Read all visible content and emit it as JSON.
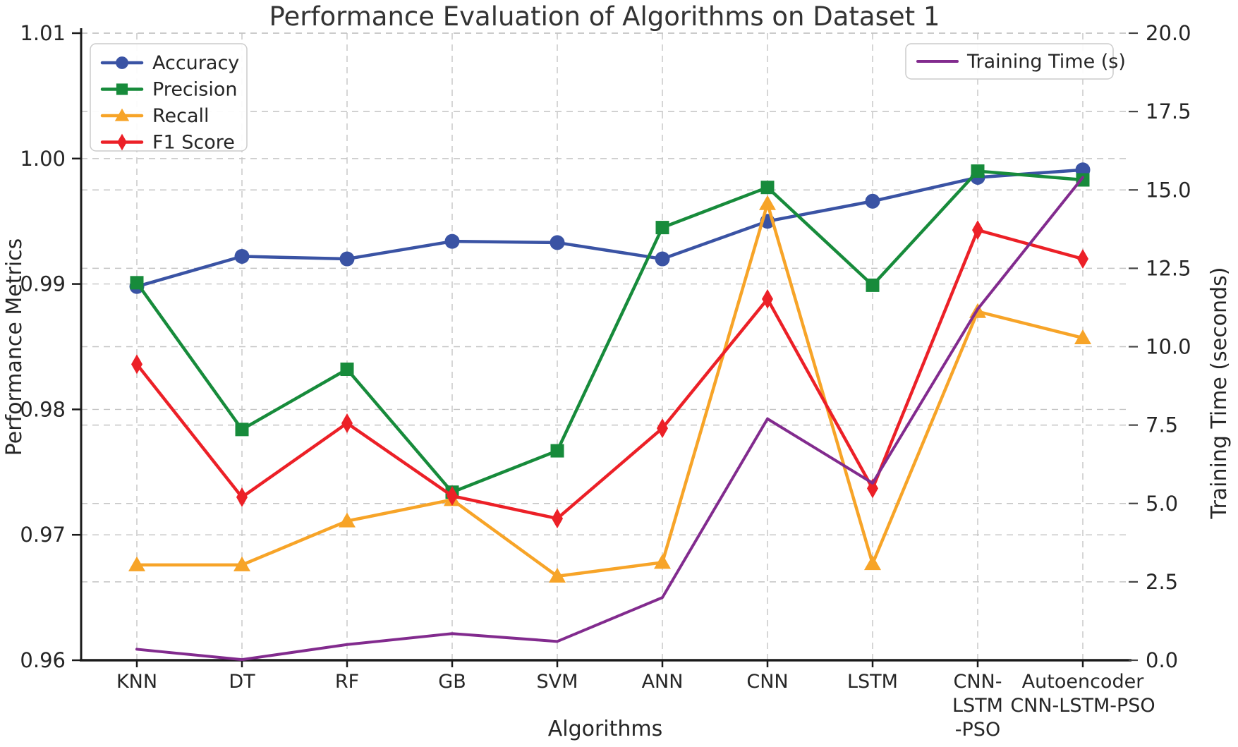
{
  "title": "Performance Evaluation of Algorithms on Dataset 1",
  "chart_data": {
    "type": "line",
    "title": "Performance Evaluation of Algorithms on Dataset 1",
    "xlabel": "Algorithms",
    "categories": [
      "KNN",
      "DT",
      "RF",
      "GB",
      "SVM",
      "ANN",
      "CNN",
      "LSTM",
      "CNN-LSTM-PSO",
      "Autoencoder CNN-LSTM-PSO"
    ],
    "x_tick_lines": [
      [
        "KNN"
      ],
      [
        "DT"
      ],
      [
        "RF"
      ],
      [
        "GB"
      ],
      [
        "SVM"
      ],
      [
        "ANN"
      ],
      [
        "CNN"
      ],
      [
        "LSTM"
      ],
      [
        "CNN-",
        "LSTM",
        "-PSO"
      ],
      [
        "Autoencoder",
        "CNN-LSTM-PSO"
      ]
    ],
    "left_axis": {
      "label": "Performance Metrics",
      "min": 0.96,
      "max": 1.01,
      "tick_values": [
        0.96,
        0.97,
        0.98,
        0.99,
        1.0,
        1.01
      ],
      "tick_labels": [
        "0.96",
        "0.97",
        "0.98",
        "0.99",
        "1.00",
        "1.01"
      ]
    },
    "right_axis": {
      "label": "Training Time (seconds)",
      "min": 0,
      "max": 20,
      "tick_values": [
        0,
        2.5,
        5,
        7.5,
        10,
        12.5,
        15,
        17.5,
        20
      ],
      "tick_labels": [
        "0.0",
        "2.5",
        "5.0",
        "7.5",
        "10.0",
        "12.5",
        "15.0",
        "17.5",
        "20.0"
      ]
    },
    "grid": true,
    "legend_left_entries": [
      "Accuracy",
      "Precision",
      "Recall",
      "F1 Score"
    ],
    "legend_right_entries": [
      "Training Time (s)"
    ],
    "series": [
      {
        "name": "Accuracy",
        "axis": "left",
        "color": "#3A53A4",
        "marker": "circle",
        "values": [
          0.9898,
          0.9922,
          0.992,
          0.9934,
          0.9933,
          0.992,
          0.995,
          0.9966,
          0.9985,
          0.9991
        ]
      },
      {
        "name": "Precision",
        "axis": "left",
        "color": "#178B3B",
        "marker": "square",
        "values": [
          0.9901,
          0.9784,
          0.9832,
          0.9734,
          0.9767,
          0.9945,
          0.9977,
          0.9899,
          0.999,
          0.9983
        ]
      },
      {
        "name": "Recall",
        "axis": "left",
        "color": "#F7A428",
        "marker": "triangle",
        "values": [
          0.9676,
          0.9676,
          0.9711,
          0.9728,
          0.9667,
          0.9678,
          0.9964,
          0.9677,
          0.9878,
          0.9857
        ]
      },
      {
        "name": "F1 Score",
        "axis": "left",
        "color": "#EC2027",
        "marker": "diamond",
        "values": [
          0.9836,
          0.973,
          0.9789,
          0.9731,
          0.9713,
          0.9785,
          0.9888,
          0.9737,
          0.9943,
          0.992
        ]
      },
      {
        "name": "Training Time (s)",
        "axis": "right",
        "color": "#822B8E",
        "marker": "none",
        "values": [
          0.35,
          0.02,
          0.5,
          0.85,
          0.6,
          2.0,
          7.7,
          5.65,
          11.2,
          15.4
        ]
      }
    ]
  },
  "style": {
    "grid_color": "#c4c4c4",
    "spine_color": "#1a1a1a",
    "legend_border": "#cccccc",
    "background": "#ffffff"
  }
}
